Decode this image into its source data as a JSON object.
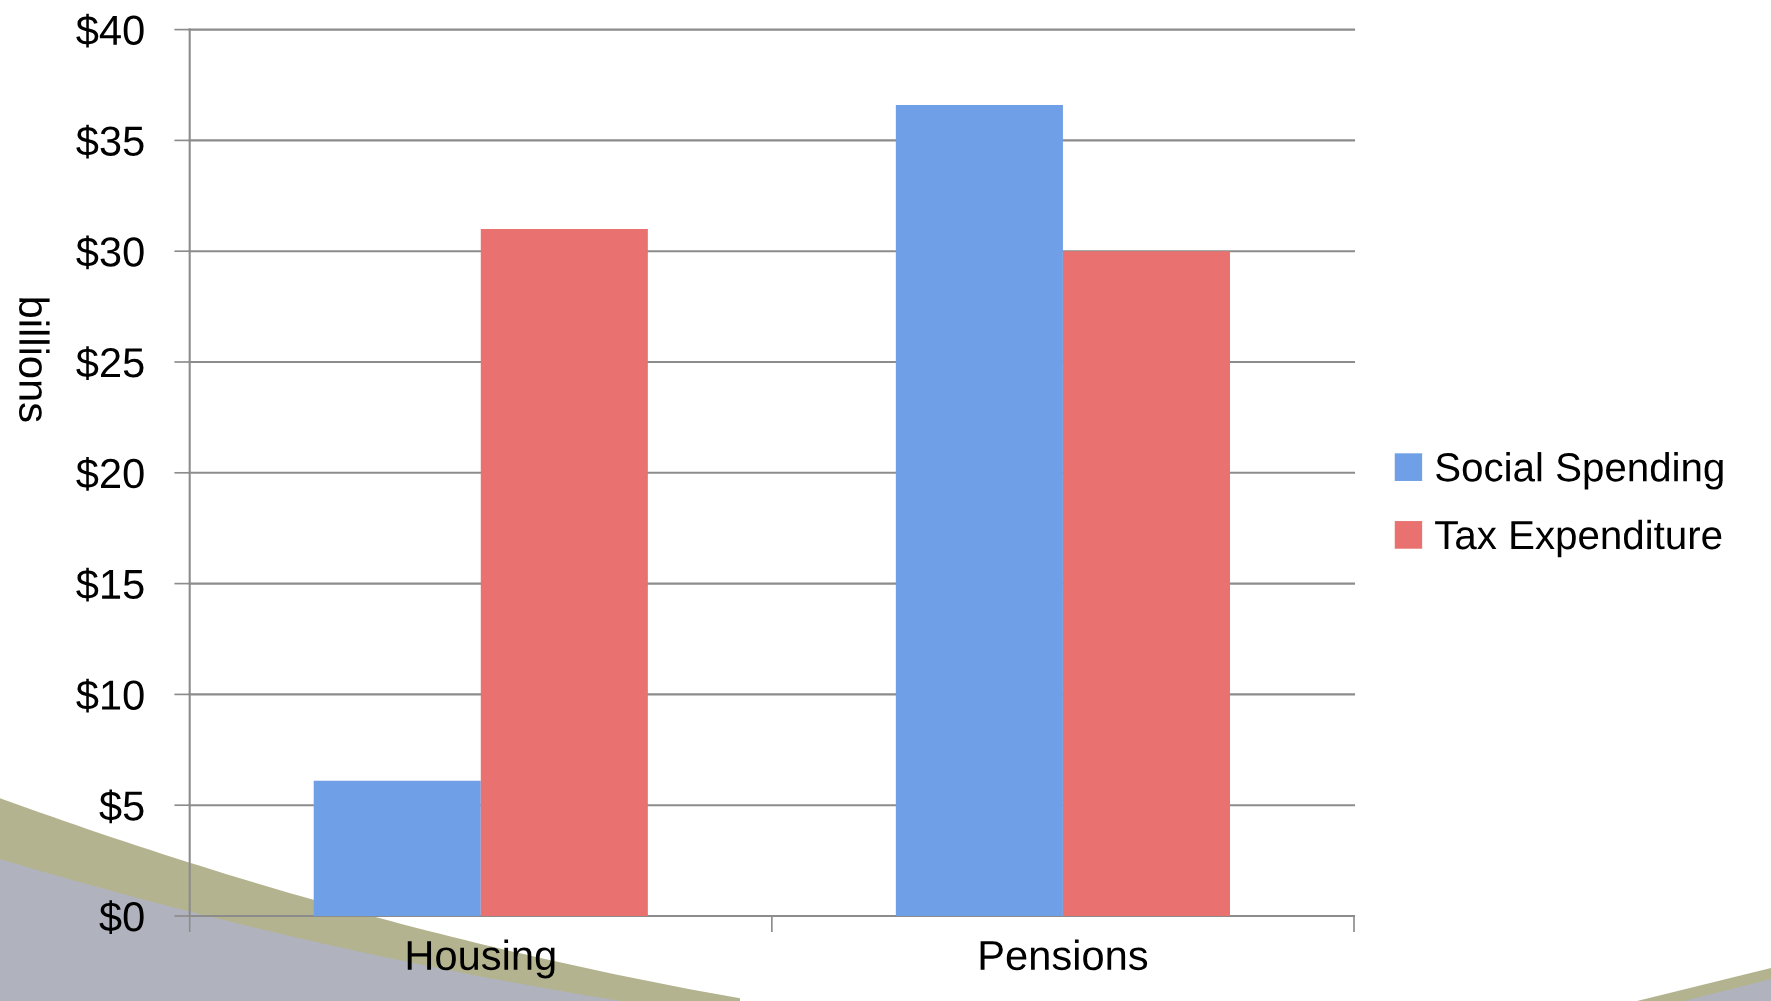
{
  "chart_data": {
    "type": "bar",
    "ylabel": "billions",
    "categories": [
      "Housing",
      "Pensions"
    ],
    "series": [
      {
        "name": "Social Spending",
        "color": "#6f9fe6",
        "values": [
          6.1,
          36.6
        ]
      },
      {
        "name": "Tax Expenditure",
        "color": "#e9716f",
        "values": [
          31.0,
          30.0
        ]
      }
    ],
    "ylim": [
      0,
      40
    ],
    "yticks": [
      {
        "value": 0,
        "label": "$0"
      },
      {
        "value": 5,
        "label": "$5"
      },
      {
        "value": 10,
        "label": "$10"
      },
      {
        "value": 15,
        "label": "$15"
      },
      {
        "value": 20,
        "label": "$20"
      },
      {
        "value": 25,
        "label": "$25"
      },
      {
        "value": 30,
        "label": "$30"
      },
      {
        "value": 35,
        "label": "$35"
      },
      {
        "value": 40,
        "label": "$40"
      }
    ],
    "grid": "y",
    "legend": "right"
  }
}
